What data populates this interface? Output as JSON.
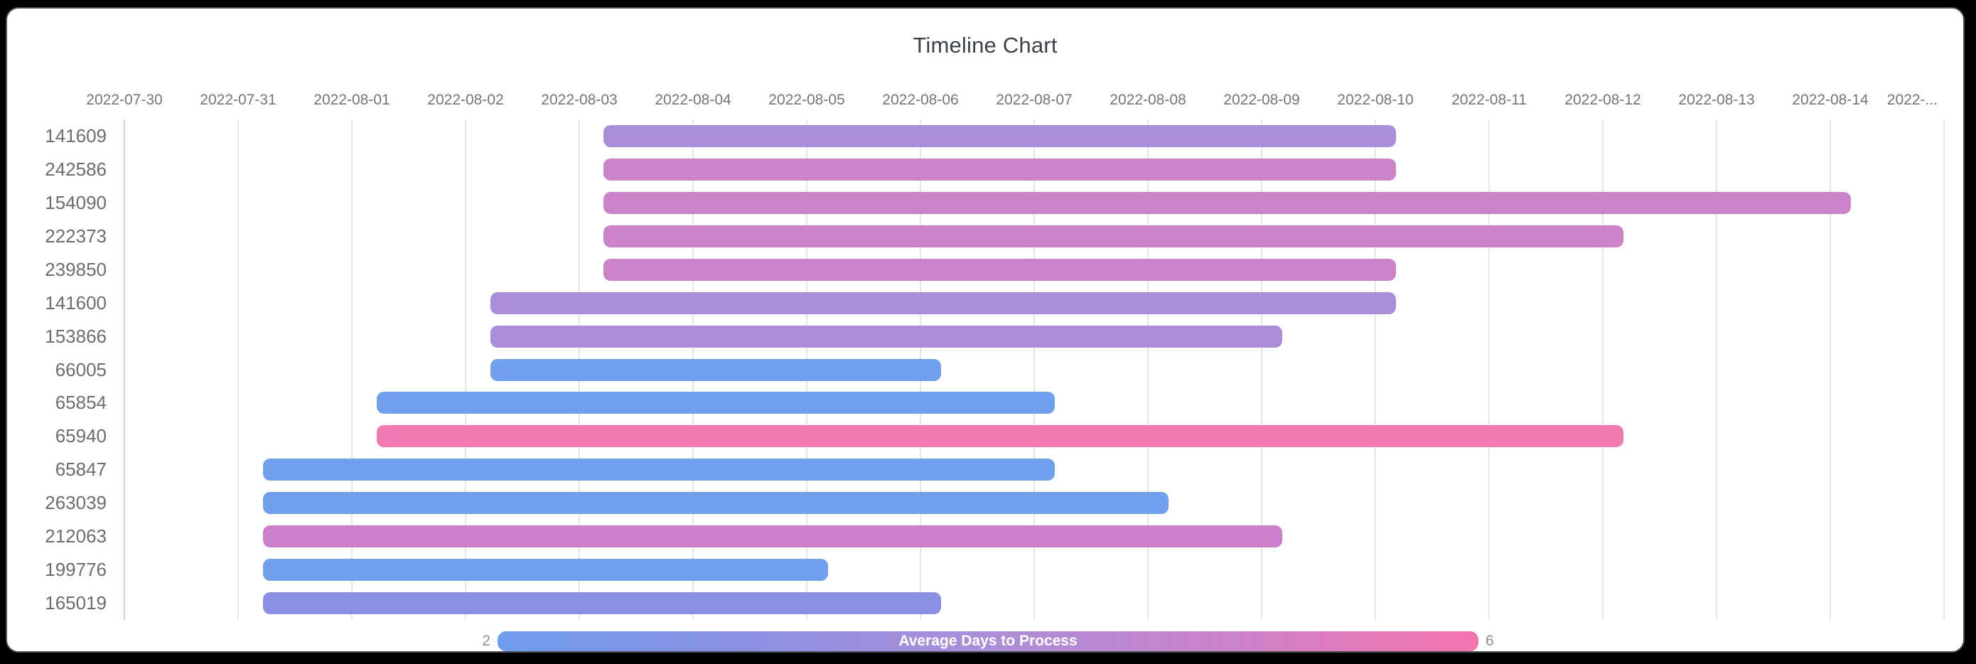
{
  "frame": {
    "background": "#000000",
    "card_border": "#4a5054",
    "card_background": "#ffffff"
  },
  "chart_data": {
    "type": "timeline",
    "title": "Timeline Chart",
    "axis_origin_date": "2022-07-30",
    "px_note": "x axis: one gridline per day; bars colored by Average Days to Process scale",
    "x_ticks": [
      {
        "label": "2022-07-30",
        "day": 0
      },
      {
        "label": "2022-07-31",
        "day": 1
      },
      {
        "label": "2022-08-01",
        "day": 2
      },
      {
        "label": "2022-08-02",
        "day": 3
      },
      {
        "label": "2022-08-03",
        "day": 4
      },
      {
        "label": "2022-08-04",
        "day": 5
      },
      {
        "label": "2022-08-05",
        "day": 6
      },
      {
        "label": "2022-08-06",
        "day": 7
      },
      {
        "label": "2022-08-07",
        "day": 8
      },
      {
        "label": "2022-08-08",
        "day": 9
      },
      {
        "label": "2022-08-09",
        "day": 10
      },
      {
        "label": "2022-08-10",
        "day": 11
      },
      {
        "label": "2022-08-11",
        "day": 12
      },
      {
        "label": "2022-08-12",
        "day": 13
      },
      {
        "label": "2022-08-13",
        "day": 14
      },
      {
        "label": "2022-08-14",
        "day": 15
      },
      {
        "label": "2022-...",
        "day": 16,
        "truncated": true
      }
    ],
    "rows": [
      {
        "id": "141609",
        "start_day": 4.21,
        "end_day": 11.18,
        "duration_days": 7,
        "start_date": "2022-08-03",
        "end_date": "2022-08-10",
        "color": "#ab8ed9"
      },
      {
        "id": "242586",
        "start_day": 4.21,
        "end_day": 11.18,
        "duration_days": 7,
        "start_date": "2022-08-03",
        "end_date": "2022-08-10",
        "color": "#c983c9"
      },
      {
        "id": "154090",
        "start_day": 4.21,
        "end_day": 15.18,
        "duration_days": 11,
        "start_date": "2022-08-03",
        "end_date": "2022-08-14",
        "color": "#cb82c8"
      },
      {
        "id": "222373",
        "start_day": 4.21,
        "end_day": 13.18,
        "duration_days": 9,
        "start_date": "2022-08-03",
        "end_date": "2022-08-12",
        "color": "#cb82c8"
      },
      {
        "id": "239850",
        "start_day": 4.21,
        "end_day": 11.18,
        "duration_days": 7,
        "start_date": "2022-08-03",
        "end_date": "2022-08-10",
        "color": "#cb82c8"
      },
      {
        "id": "141600",
        "start_day": 3.22,
        "end_day": 11.18,
        "duration_days": 8,
        "start_date": "2022-08-02",
        "end_date": "2022-08-10",
        "color": "#ab8ed9"
      },
      {
        "id": "153866",
        "start_day": 3.22,
        "end_day": 10.18,
        "duration_days": 7,
        "start_date": "2022-08-02",
        "end_date": "2022-08-09",
        "color": "#aa8cd8"
      },
      {
        "id": "66005",
        "start_day": 3.22,
        "end_day": 7.18,
        "duration_days": 4,
        "start_date": "2022-08-02",
        "end_date": "2022-08-06",
        "color": "#70a0ee"
      },
      {
        "id": "65854",
        "start_day": 2.22,
        "end_day": 8.18,
        "duration_days": 6,
        "start_date": "2022-08-01",
        "end_date": "2022-08-07",
        "color": "#70a0ee"
      },
      {
        "id": "65940",
        "start_day": 2.22,
        "end_day": 13.18,
        "duration_days": 11,
        "start_date": "2022-08-01",
        "end_date": "2022-08-12",
        "color": "#f27ab3"
      },
      {
        "id": "65847",
        "start_day": 1.22,
        "end_day": 8.18,
        "duration_days": 7,
        "start_date": "2022-07-31",
        "end_date": "2022-08-07",
        "color": "#70a0ee"
      },
      {
        "id": "263039",
        "start_day": 1.22,
        "end_day": 9.18,
        "duration_days": 8,
        "start_date": "2022-07-31",
        "end_date": "2022-08-08",
        "color": "#70a0ee"
      },
      {
        "id": "212063",
        "start_day": 1.22,
        "end_day": 10.18,
        "duration_days": 9,
        "start_date": "2022-07-31",
        "end_date": "2022-08-09",
        "color": "#cb7ec9"
      },
      {
        "id": "199776",
        "start_day": 1.22,
        "end_day": 6.19,
        "duration_days": 5,
        "start_date": "2022-07-31",
        "end_date": "2022-08-05",
        "color": "#70a0ee"
      },
      {
        "id": "165019",
        "start_day": 1.22,
        "end_day": 7.18,
        "duration_days": 6,
        "start_date": "2022-07-31",
        "end_date": "2022-08-06",
        "color": "#8b90e2"
      }
    ],
    "grid": {
      "line_color": "#e4e4e4",
      "first_line_color": "#c7d3e6"
    },
    "legend": {
      "label": "Average Days to Process",
      "min": "2",
      "max": "6",
      "gradient": [
        "#6f9ded",
        "#8b90e2",
        "#ab8ed9",
        "#cb82c8",
        "#f473ae"
      ]
    }
  }
}
